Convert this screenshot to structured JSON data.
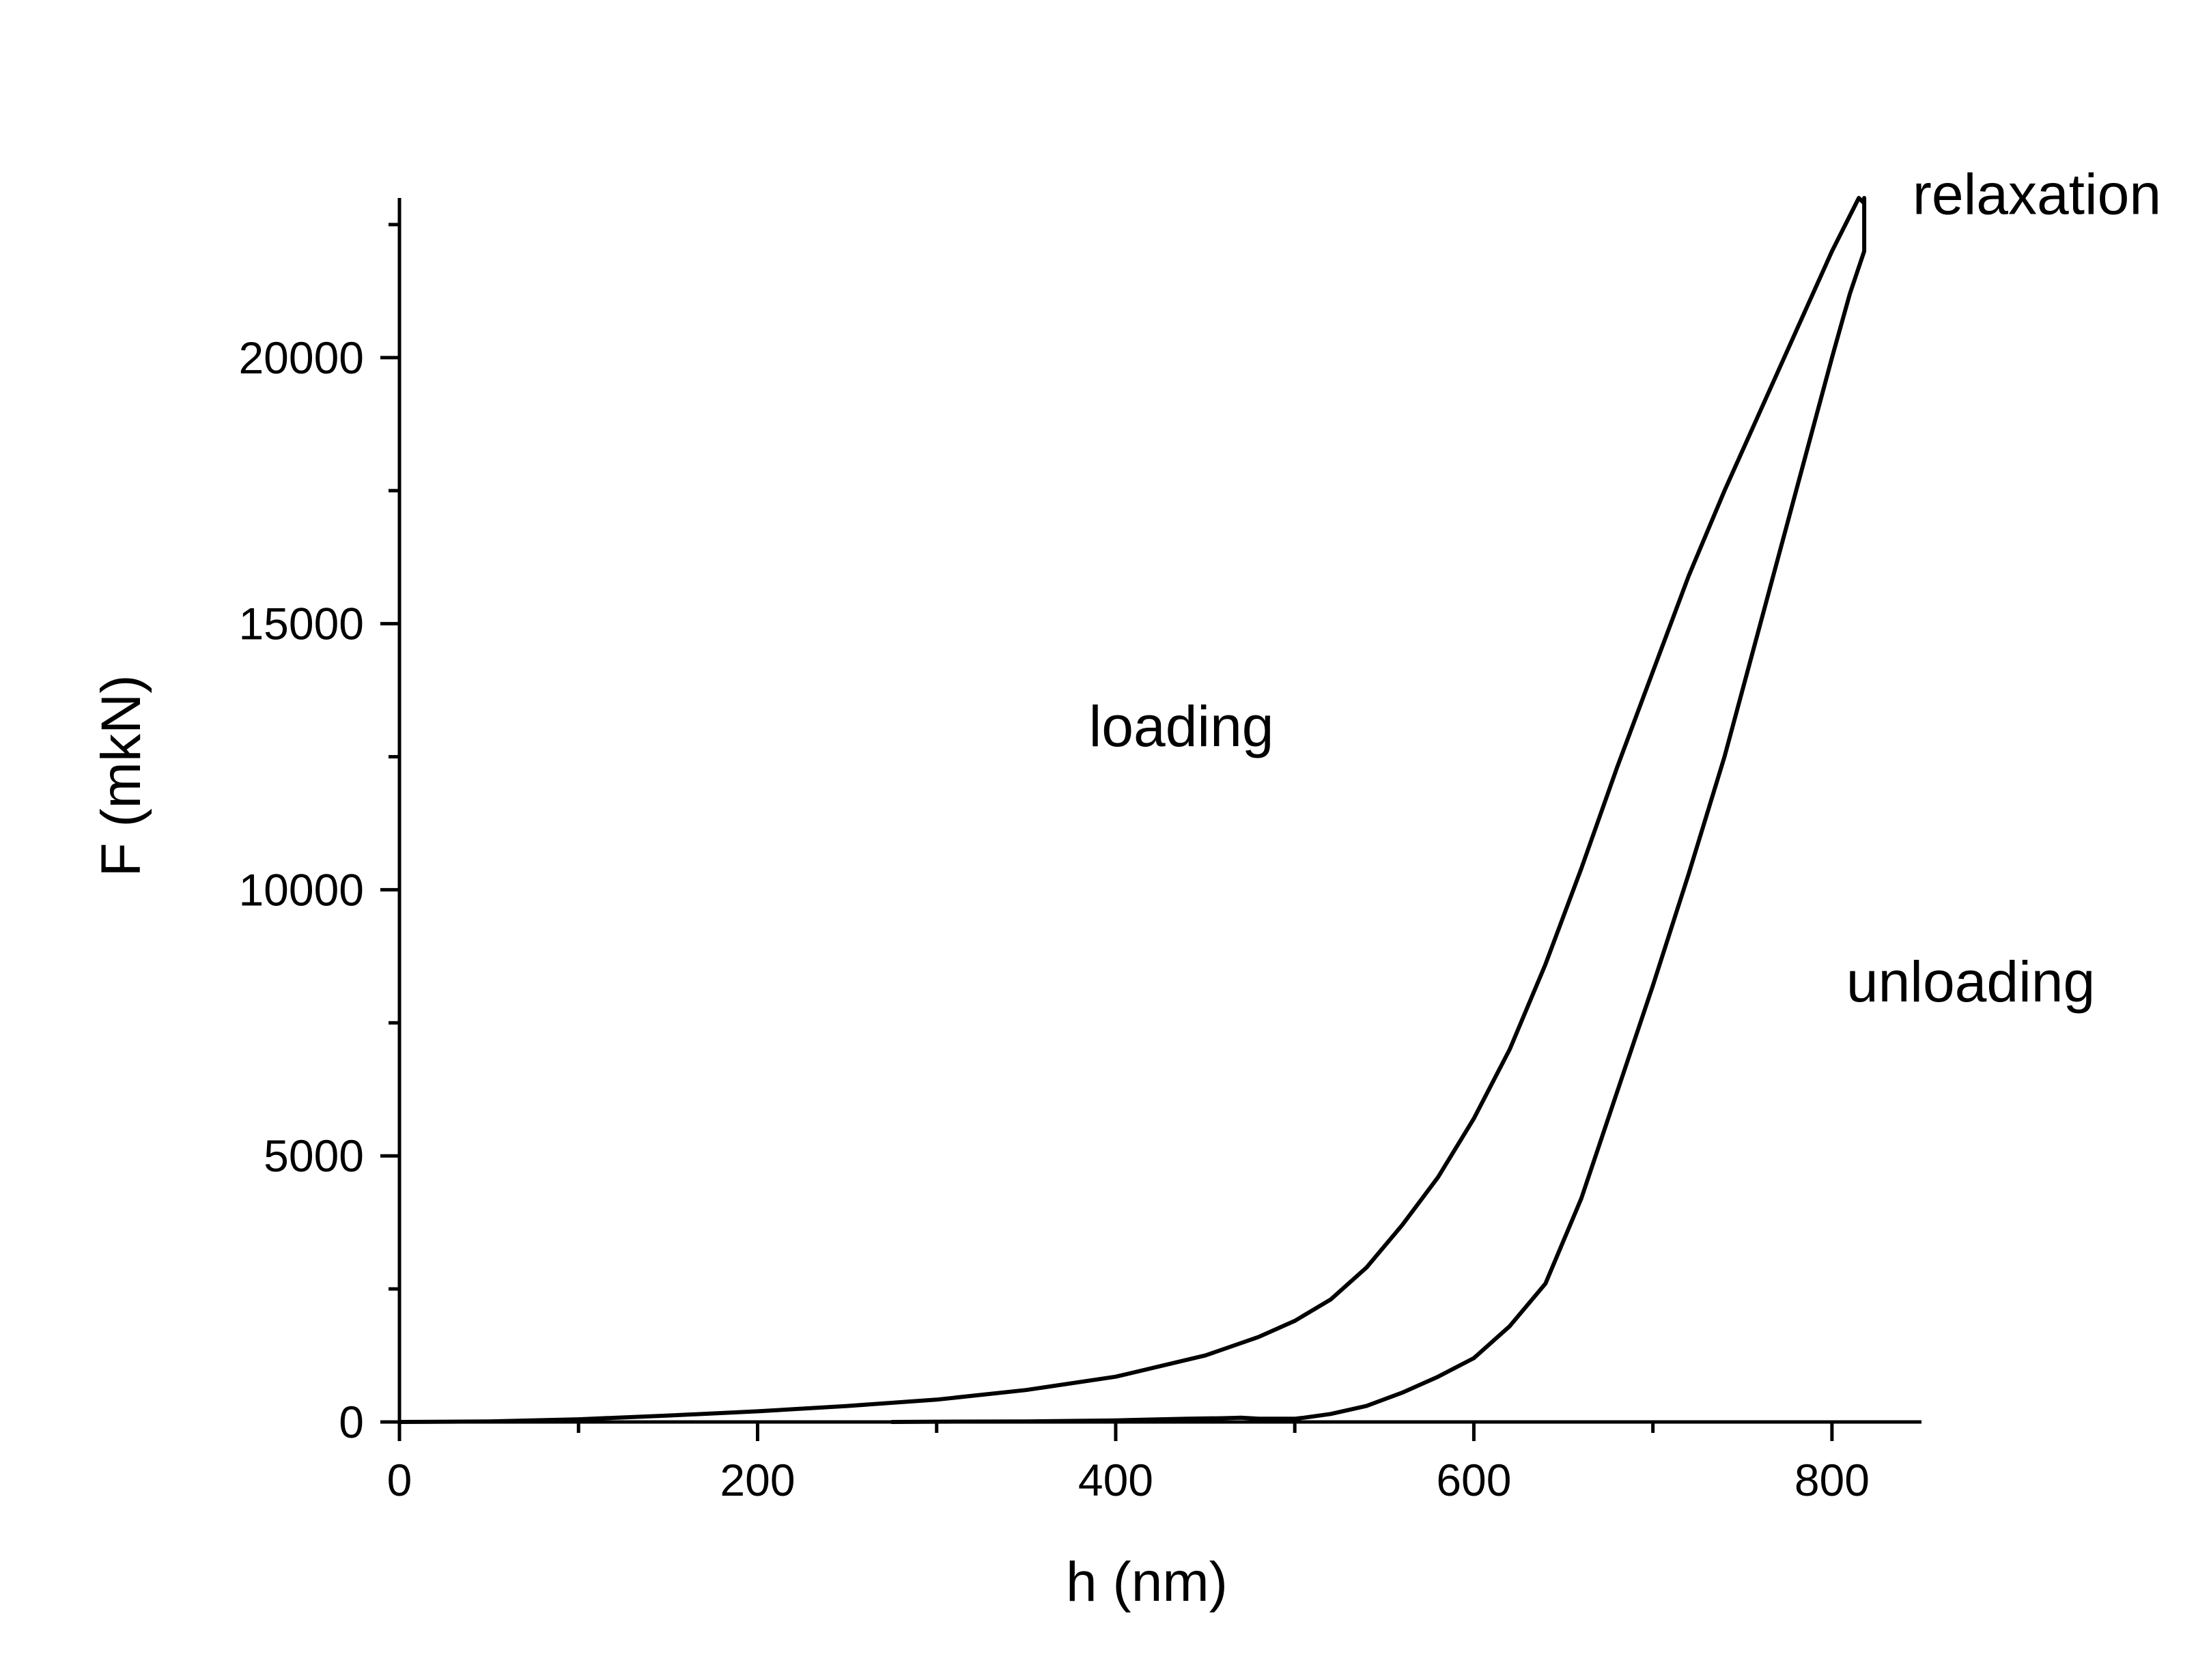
{
  "chart_data": {
    "type": "line",
    "title": "",
    "xlabel": "h (nm)",
    "ylabel": "F (mkN)",
    "xlim": [
      0,
      850
    ],
    "ylim": [
      0,
      23000
    ],
    "x_ticks": [
      0,
      200,
      400,
      600,
      800
    ],
    "y_ticks": [
      0,
      5000,
      10000,
      15000,
      20000
    ],
    "x_minor_ticks": [
      100,
      300,
      500,
      700
    ],
    "y_minor_ticks": [
      2500,
      7500,
      12500,
      17500,
      22500
    ],
    "grid": false,
    "line_color": "#000000",
    "annotations": [
      {
        "text": "relaxation",
        "x": 845,
        "y": 22700
      },
      {
        "text": "loading",
        "x": 385,
        "y": 12700
      },
      {
        "text": "unloading",
        "x": 808,
        "y": 7900
      }
    ],
    "series": [
      {
        "points": [
          [
            0,
            0
          ],
          [
            50,
            10
          ],
          [
            100,
            50
          ],
          [
            150,
            120
          ],
          [
            200,
            200
          ],
          [
            250,
            300
          ],
          [
            300,
            420
          ],
          [
            350,
            600
          ],
          [
            400,
            850
          ],
          [
            450,
            1250
          ],
          [
            480,
            1600
          ],
          [
            500,
            1900
          ],
          [
            520,
            2300
          ],
          [
            540,
            2900
          ],
          [
            560,
            3700
          ],
          [
            580,
            4600
          ],
          [
            600,
            5700
          ],
          [
            620,
            7000
          ],
          [
            640,
            8600
          ],
          [
            660,
            10400
          ],
          [
            680,
            12300
          ],
          [
            700,
            14100
          ],
          [
            720,
            15900
          ],
          [
            740,
            17500
          ],
          [
            760,
            19000
          ],
          [
            780,
            20500
          ],
          [
            800,
            22000
          ],
          [
            815,
            23000
          ],
          [
            818,
            22900
          ]
        ]
      },
      {
        "points": [
          [
            818,
            23000
          ],
          [
            818,
            22000
          ],
          [
            810,
            21200
          ],
          [
            800,
            20000
          ],
          [
            780,
            17500
          ],
          [
            760,
            15000
          ],
          [
            740,
            12500
          ],
          [
            720,
            10300
          ],
          [
            700,
            8200
          ],
          [
            680,
            6200
          ],
          [
            660,
            4200
          ],
          [
            640,
            2600
          ],
          [
            620,
            1800
          ],
          [
            600,
            1200
          ],
          [
            580,
            850
          ],
          [
            560,
            550
          ],
          [
            540,
            300
          ],
          [
            520,
            150
          ],
          [
            505,
            80
          ],
          [
            500,
            60
          ],
          [
            480,
            60
          ],
          [
            470,
            80
          ],
          [
            460,
            70
          ],
          [
            440,
            60
          ],
          [
            400,
            30
          ],
          [
            350,
            10
          ],
          [
            300,
            5
          ],
          [
            275,
            0
          ]
        ]
      }
    ]
  }
}
